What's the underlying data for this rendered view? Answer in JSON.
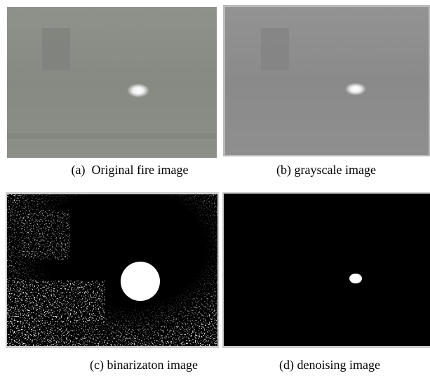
{
  "figure": {
    "panels": [
      {
        "caption": "(a)  Original fire image"
      },
      {
        "caption": "(b) grayscale image"
      },
      {
        "caption": "(c) binarizaton image"
      },
      {
        "caption": "(d) denoising image"
      }
    ]
  }
}
